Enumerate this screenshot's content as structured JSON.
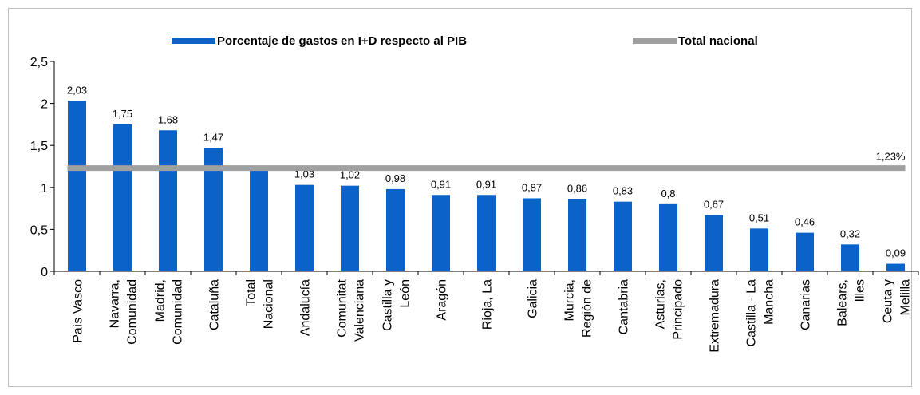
{
  "chart_data": {
    "type": "bar",
    "categories": [
      "País Vasco",
      "Navarra, Comunidad",
      "Madrid, Comunidad",
      "Cataluña",
      "Total Nacional",
      "Andalucía",
      "Comunitat Valenciana",
      "Castilla y León",
      "Aragón",
      "Rioja, La",
      "Galicia",
      "Murcia, Región de",
      "Cantabria",
      "Asturias, Principado",
      "Extremadura",
      "Castilla - La Mancha",
      "Canarias",
      "Balears, Illes",
      "Ceuta y Melilla"
    ],
    "series": [
      {
        "name": "Porcentaje de gastos en I+D respecto al PIB",
        "color": "#0b63c9",
        "values": [
          2.03,
          1.75,
          1.68,
          1.47,
          1.23,
          1.03,
          1.02,
          0.98,
          0.91,
          0.91,
          0.87,
          0.86,
          0.83,
          0.8,
          0.67,
          0.51,
          0.46,
          0.32,
          0.09
        ],
        "value_labels": [
          "2,03",
          "1,75",
          "1,68",
          "1,47",
          null,
          "1,03",
          "1,02",
          "0,98",
          "0,91",
          "0,91",
          "0,87",
          "0,86",
          "0,83",
          "0,8",
          "0,67",
          "0,51",
          "0,46",
          "0,32",
          "0,09"
        ]
      }
    ],
    "reference_line": {
      "name": "Total nacional",
      "value": 1.23,
      "value_label": "1,23%",
      "color": "#a0a0a0"
    },
    "ylim": [
      0,
      2.5
    ],
    "yticks": [
      0,
      {
        "value": 0.5,
        "label": "0,5"
      },
      1,
      {
        "value": 1.5,
        "label": "1,5"
      },
      2,
      {
        "value": 2.5,
        "label": "2,5"
      }
    ],
    "grid": false,
    "legend": "top"
  }
}
